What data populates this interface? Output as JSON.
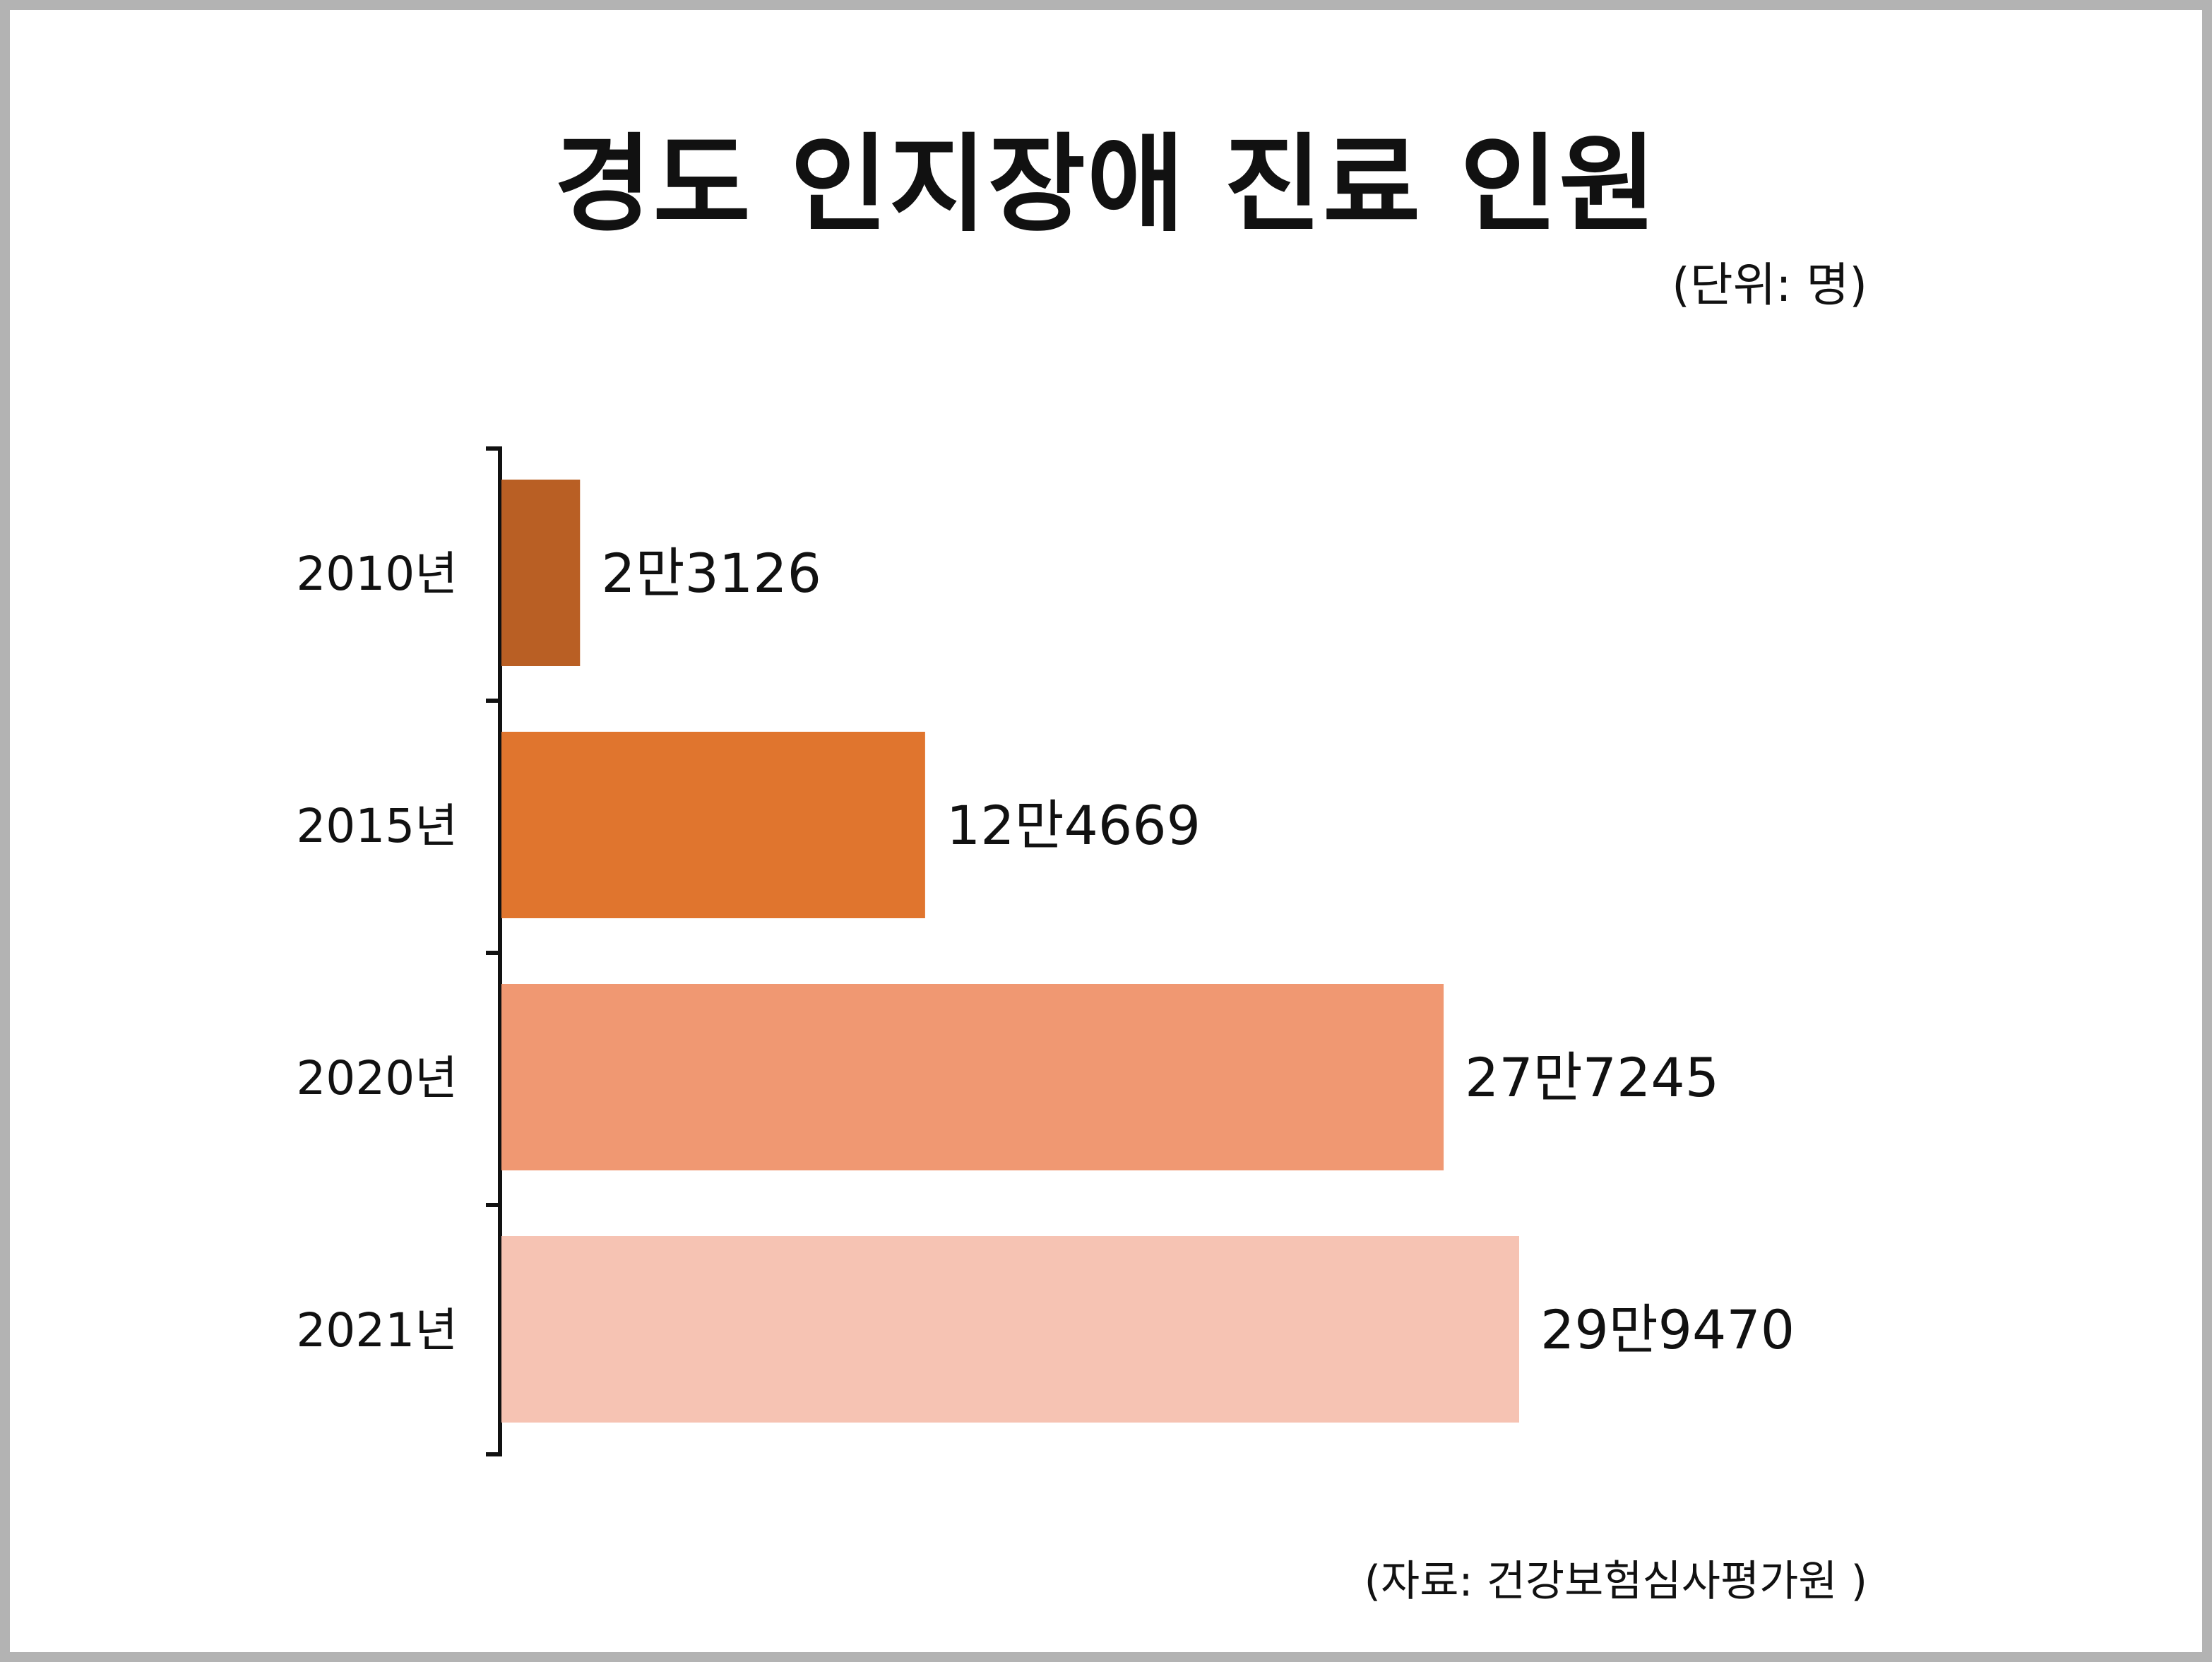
{
  "chart_data": {
    "type": "bar",
    "orientation": "horizontal",
    "title": "경도 인지장애 진료 인원",
    "unit_note": "(단위: 명)",
    "source_note": "(자료: 건강보험심사평가원 )",
    "categories": [
      "2010년",
      "2015년",
      "2020년",
      "2021년"
    ],
    "values": [
      23126,
      124669,
      277245,
      299470
    ],
    "value_labels": [
      "2만3126",
      "12만4669",
      "27만7245",
      "29만9470"
    ],
    "colors": [
      "#b95f24",
      "#e0752e",
      "#f09872",
      "#f6c3b3"
    ],
    "grid": false,
    "legend": "none"
  }
}
